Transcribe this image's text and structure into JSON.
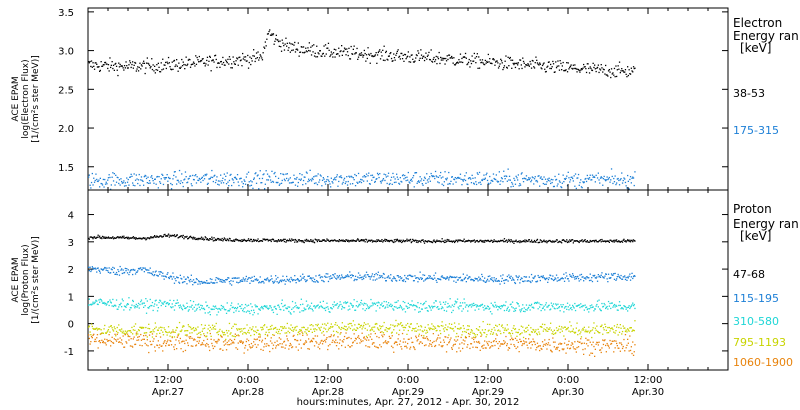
{
  "chart_data": {
    "type": "scatter",
    "x_axis": {
      "label": "hours:minutes, Apr. 27, 2012 - Apr. 30, 2012",
      "range_hours": [
        0,
        96
      ],
      "ticks": [
        {
          "hour": 12,
          "time": "12:00",
          "day": "Apr.27"
        },
        {
          "hour": 24,
          "time": "0:00",
          "day": "Apr.28"
        },
        {
          "hour": 36,
          "time": "12:00",
          "day": "Apr.28"
        },
        {
          "hour": 48,
          "time": "0:00",
          "day": "Apr.29"
        },
        {
          "hour": 60,
          "time": "12:00",
          "day": "Apr.29"
        },
        {
          "hour": 72,
          "time": "0:00",
          "day": "Apr.30"
        },
        {
          "hour": 84,
          "time": "12:00",
          "day": "Apr.30"
        }
      ]
    },
    "panels": [
      {
        "id": "electron",
        "ylabel": [
          "ACE EPAM",
          "log(Electron Flux)",
          "[1/(cm²s ster MeV)]"
        ],
        "ylim": [
          1.2,
          3.55
        ],
        "yticks": [
          "1.5",
          "2.0",
          "2.5",
          "3.0",
          "3.5"
        ],
        "yticks_values": [
          1.5,
          2.0,
          2.5,
          3.0,
          3.5
        ],
        "legend_title": [
          "Electron",
          "Energy ran",
          "[keV]"
        ],
        "series": [
          {
            "name": "38-53",
            "color": "#000000",
            "profile": [
              [
                0,
                2.82
              ],
              [
                6,
                2.8
              ],
              [
                12,
                2.82
              ],
              [
                18,
                2.86
              ],
              [
                24,
                2.9
              ],
              [
                26,
                2.92
              ],
              [
                27,
                3.25
              ],
              [
                28,
                3.15
              ],
              [
                30,
                3.05
              ],
              [
                36,
                2.99
              ],
              [
                42,
                2.96
              ],
              [
                48,
                2.93
              ],
              [
                54,
                2.9
              ],
              [
                60,
                2.86
              ],
              [
                66,
                2.82
              ],
              [
                72,
                2.78
              ],
              [
                78,
                2.75
              ],
              [
                82,
                2.74
              ]
            ],
            "scatter": 0.045
          },
          {
            "name": "175-315",
            "color": "#1c7fd6",
            "profile": [
              [
                0,
                1.33
              ],
              [
                20,
                1.35
              ],
              [
                40,
                1.35
              ],
              [
                60,
                1.35
              ],
              [
                82,
                1.33
              ]
            ],
            "scatter": 0.05
          }
        ]
      },
      {
        "id": "proton",
        "ylabel": [
          "ACE EPAM",
          "log(Proton Flux)",
          "[1/(cm²s ster MeV)]"
        ],
        "ylim": [
          -1.7,
          4.9
        ],
        "yticks": [
          "-1",
          "0",
          "1",
          "2",
          "3",
          "4"
        ],
        "yticks_values": [
          -1,
          0,
          1,
          2,
          3,
          4
        ],
        "legend_title": [
          "Proton",
          "Energy ran",
          "[keV]"
        ],
        "series": [
          {
            "name": "47-68",
            "color": "#000000",
            "profile": [
              [
                0,
                3.2
              ],
              [
                8,
                3.15
              ],
              [
                12,
                3.25
              ],
              [
                20,
                3.1
              ],
              [
                30,
                3.07
              ],
              [
                50,
                3.05
              ],
              [
                82,
                3.05
              ]
            ],
            "scatter": 0.03
          },
          {
            "name": "115-195",
            "color": "#1c7fd6",
            "profile": [
              [
                0,
                2.05
              ],
              [
                4,
                1.95
              ],
              [
                8,
                2.0
              ],
              [
                10,
                1.85
              ],
              [
                16,
                1.55
              ],
              [
                20,
                1.6
              ],
              [
                30,
                1.65
              ],
              [
                40,
                1.75
              ],
              [
                50,
                1.7
              ],
              [
                62,
                1.65
              ],
              [
                70,
                1.7
              ],
              [
                82,
                1.75
              ]
            ],
            "scatter": 0.08
          },
          {
            "name": "310-580",
            "color": "#1fd6d6",
            "profile": [
              [
                0,
                0.8
              ],
              [
                8,
                0.7
              ],
              [
                12,
                0.75
              ],
              [
                18,
                0.55
              ],
              [
                30,
                0.6
              ],
              [
                40,
                0.7
              ],
              [
                60,
                0.65
              ],
              [
                82,
                0.65
              ]
            ],
            "scatter": 0.1
          },
          {
            "name": "795-1193",
            "color": "#c8d400",
            "profile": [
              [
                0,
                -0.2
              ],
              [
                20,
                -0.25
              ],
              [
                40,
                -0.1
              ],
              [
                60,
                -0.2
              ],
              [
                82,
                -0.2
              ]
            ],
            "scatter": 0.12
          },
          {
            "name": "1060-1900",
            "color": "#e8830c",
            "profile": [
              [
                0,
                -0.6
              ],
              [
                20,
                -0.7
              ],
              [
                40,
                -0.6
              ],
              [
                60,
                -0.7
              ],
              [
                82,
                -0.8
              ]
            ],
            "scatter": 0.15
          }
        ]
      }
    ],
    "data_end_hour": 82
  }
}
